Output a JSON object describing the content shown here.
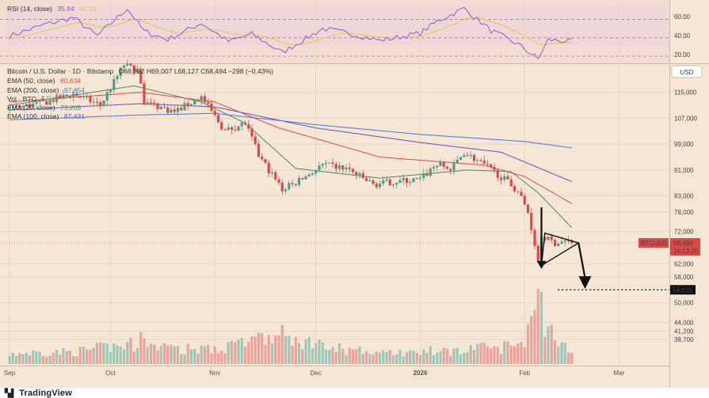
{
  "rsi_panel": {
    "label": "RSI (14, close)",
    "value": "35.84",
    "value2": "40.20",
    "levels": [
      "60.00",
      "40.00",
      "20.00"
    ]
  },
  "legend": {
    "symbol": "Bitcoin / U.S. Dollar · 1D · Bitstamp",
    "ohlc": "O68,792  H69,007  L68,127  C68,494  −298 (−0.43%)",
    "ema50_label": "EMA (50, close)",
    "ema50_value": "80,634",
    "ema200_label": "EMA (200, close)",
    "ema200_value": "97,854",
    "vol_label": "Vol · BTC",
    "vol_value": "57",
    "ema20_label": "EMA (20, close)",
    "ema20_value": "73,205",
    "ema100_label": "EMA (100, close)",
    "ema100_value": "87,431"
  },
  "currency_button": "USD",
  "price_tag": {
    "symbol": "BTCUSD",
    "price": "68,494",
    "countdown": "16:13:30"
  },
  "target_label": "54,016",
  "colors": {
    "bg": "#f5e6d6",
    "up": "#4f9b88",
    "down": "#d84a45",
    "ema20": "#4d8a63",
    "ema50": "#e0474c",
    "ema100": "#6b4fbf",
    "ema200": "#4a78d6",
    "rsi": "#8a60c9",
    "rsi_ma": "#e8c84a"
  },
  "chart_data": {
    "type": "candlestick",
    "title": "Bitcoin / U.S. Dollar · 1D · Bitstamp",
    "yticks": [
      115000,
      107000,
      99000,
      91000,
      83000,
      78000,
      72000,
      62000,
      58000,
      50000,
      44000,
      41200,
      38700
    ],
    "ytick_labels": [
      "115,000",
      "107,000",
      "99,000",
      "91,000",
      "83,000",
      "78,000",
      "72,000",
      "62,000",
      "58,000",
      "50,000",
      "44,000",
      "41,200",
      "38,700"
    ],
    "xticks": [
      "Sep",
      "Oct",
      "Nov",
      "Dec",
      "2026",
      "Feb",
      "Mar"
    ],
    "xtick_dates": [
      "2025-09-01",
      "2025-10-01",
      "2025-11-01",
      "2025-12-01",
      "2026-01-01",
      "2026-02-01",
      "2026-03-01"
    ],
    "anchors": [
      [
        "2025-09-01",
        110000
      ],
      [
        "2025-09-10",
        111500
      ],
      [
        "2025-09-20",
        114500
      ],
      [
        "2025-09-28",
        111000
      ],
      [
        "2025-10-05",
        123500
      ],
      [
        "2025-10-09",
        121500
      ],
      [
        "2025-10-11",
        112000
      ],
      [
        "2025-10-20",
        109000
      ],
      [
        "2025-10-28",
        113500
      ],
      [
        "2025-11-04",
        103000
      ],
      [
        "2025-11-10",
        105500
      ],
      [
        "2025-11-14",
        95500
      ],
      [
        "2025-11-21",
        85000
      ],
      [
        "2025-11-25",
        87000
      ],
      [
        "2025-12-03",
        92500
      ],
      [
        "2025-12-10",
        91500
      ],
      [
        "2025-12-18",
        86500
      ],
      [
        "2025-12-25",
        87500
      ],
      [
        "2026-01-01",
        88000
      ],
      [
        "2026-01-06",
        93000
      ],
      [
        "2026-01-10",
        91000
      ],
      [
        "2026-01-14",
        96500
      ],
      [
        "2026-01-20",
        92500
      ],
      [
        "2026-01-25",
        89000
      ],
      [
        "2026-01-30",
        84500
      ],
      [
        "2026-02-02",
        78000
      ],
      [
        "2026-02-05",
        63500
      ],
      [
        "2026-02-06",
        70500
      ],
      [
        "2026-02-10",
        68500
      ],
      [
        "2026-02-13",
        69000
      ],
      [
        "2026-02-15",
        68494
      ]
    ],
    "ema": [
      {
        "name": "EMA (20, close)",
        "value": 73205,
        "anchors": [
          [
            "2025-09-01",
            111000
          ],
          [
            "2025-10-08",
            117000
          ],
          [
            "2025-10-28",
            112000
          ],
          [
            "2025-11-10",
            105500
          ],
          [
            "2025-11-25",
            91500
          ],
          [
            "2025-12-20",
            88500
          ],
          [
            "2026-01-15",
            91000
          ],
          [
            "2026-01-28",
            90500
          ],
          [
            "2026-02-05",
            84000
          ],
          [
            "2026-02-15",
            73205
          ]
        ]
      },
      {
        "name": "EMA (50, close)",
        "value": 80634,
        "anchors": [
          [
            "2025-09-01",
            112000
          ],
          [
            "2025-10-10",
            115000
          ],
          [
            "2025-11-01",
            112000
          ],
          [
            "2025-11-20",
            104000
          ],
          [
            "2025-12-20",
            95000
          ],
          [
            "2026-01-20",
            92500
          ],
          [
            "2026-02-01",
            89000
          ],
          [
            "2026-02-15",
            80634
          ]
        ]
      },
      {
        "name": "EMA (100, close)",
        "value": 87431,
        "anchors": [
          [
            "2025-09-01",
            109500
          ],
          [
            "2025-10-10",
            111500
          ],
          [
            "2025-11-01",
            110500
          ],
          [
            "2025-12-01",
            104000
          ],
          [
            "2026-01-01",
            99500
          ],
          [
            "2026-01-25",
            96500
          ],
          [
            "2026-02-15",
            87431
          ]
        ]
      },
      {
        "name": "EMA (200, close)",
        "value": 97854,
        "anchors": [
          [
            "2025-09-01",
            106500
          ],
          [
            "2025-10-10",
            108000
          ],
          [
            "2025-11-01",
            108500
          ],
          [
            "2025-12-01",
            105000
          ],
          [
            "2026-01-01",
            102000
          ],
          [
            "2026-02-01",
            99800
          ],
          [
            "2026-02-15",
            97854
          ]
        ]
      }
    ],
    "rsi": {
      "label": "RSI (14, close)",
      "value": 35.84,
      "ma_value": 40.2,
      "ylim": [
        14,
        76
      ],
      "levels": [
        60,
        40,
        20
      ],
      "anchors": [
        [
          "2025-09-01",
          42
        ],
        [
          "2025-09-12",
          55
        ],
        [
          "2025-09-20",
          62
        ],
        [
          "2025-09-27",
          42
        ],
        [
          "2025-10-06",
          72
        ],
        [
          "2025-10-11",
          47
        ],
        [
          "2025-10-18",
          38
        ],
        [
          "2025-10-28",
          56
        ],
        [
          "2025-11-05",
          36
        ],
        [
          "2025-11-12",
          44
        ],
        [
          "2025-11-21",
          24
        ],
        [
          "2025-12-03",
          50
        ],
        [
          "2025-12-12",
          44
        ],
        [
          "2025-12-20",
          37
        ],
        [
          "2026-01-01",
          45
        ],
        [
          "2026-01-06",
          58
        ],
        [
          "2026-01-14",
          72
        ],
        [
          "2026-01-22",
          48
        ],
        [
          "2026-01-30",
          33
        ],
        [
          "2026-02-05",
          17
        ],
        [
          "2026-02-08",
          38
        ],
        [
          "2026-02-15",
          35.84
        ]
      ]
    },
    "volume": {
      "ylim": [
        0,
        100
      ],
      "anchors": [
        [
          "2025-09-01",
          14
        ],
        [
          "2025-09-20",
          16
        ],
        [
          "2025-10-10",
          28
        ],
        [
          "2025-10-20",
          18
        ],
        [
          "2025-11-05",
          24
        ],
        [
          "2025-11-20",
          38
        ],
        [
          "2025-12-05",
          22
        ],
        [
          "2025-12-20",
          14
        ],
        [
          "2026-01-10",
          18
        ],
        [
          "2026-01-25",
          22
        ],
        [
          "2026-02-01",
          32
        ],
        [
          "2026-02-05",
          90
        ],
        [
          "2026-02-08",
          42
        ],
        [
          "2026-02-15",
          18
        ]
      ],
      "spikes": [
        [
          "2025-10-10",
          42
        ],
        [
          "2025-11-21",
          52
        ],
        [
          "2026-02-04",
          72
        ],
        [
          "2026-02-05",
          100
        ],
        [
          "2026-02-06",
          96
        ]
      ]
    },
    "annotations": {
      "triangle": [
        [
          "2026-02-06",
          61500
        ],
        [
          "2026-02-07",
          71500
        ],
        [
          "2026-02-17",
          68494
        ]
      ],
      "drop_arrow": [
        [
          "2026-02-06",
          79500
        ],
        [
          "2026-02-06",
          60500
        ]
      ],
      "target_arrow": [
        [
          "2026-02-17",
          68494
        ],
        [
          "2026-02-18",
          54300
        ]
      ],
      "target_line": {
        "from": "2026-02-05",
        "price": 54016
      }
    }
  }
}
